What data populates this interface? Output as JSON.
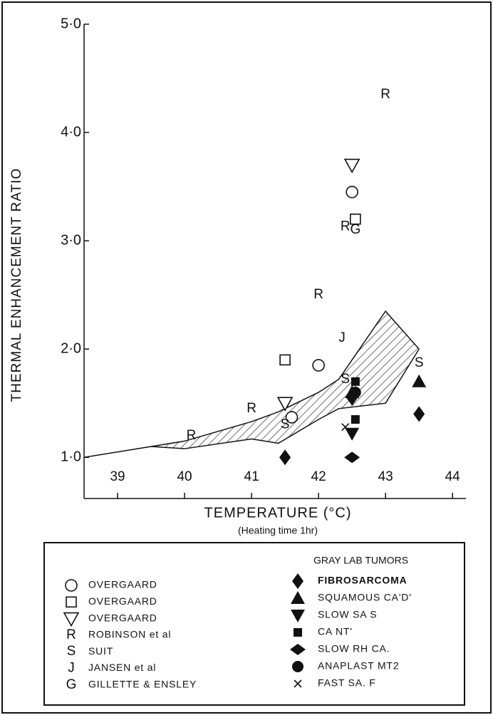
{
  "chart_data": {
    "type": "scatter",
    "y_label": "THERMAL ENHANCEMENT RATIO",
    "x_label": "TEMPERATURE (°C)",
    "x_sublabel": "(Heating time 1hr)",
    "legend_group_title": "GRAY LAB TUMORS",
    "xlim": [
      38.5,
      44.2
    ],
    "ylim": [
      0.62,
      5.0
    ],
    "xticks": [
      39,
      40,
      41,
      42,
      43,
      44
    ],
    "yticks": [
      {
        "value": 1,
        "label": "1·0"
      },
      {
        "value": 2,
        "label": "2·0"
      },
      {
        "value": 3,
        "label": "3·0"
      },
      {
        "value": 4,
        "label": "4·0"
      },
      {
        "value": 5,
        "label": "5·0"
      }
    ],
    "color": "#111111",
    "lead_line": {
      "x": [
        38.5,
        39.5
      ],
      "y": [
        1.0,
        1.1
      ]
    },
    "band": {
      "x": [
        39.5,
        40,
        41,
        41.4,
        42,
        42.3,
        43,
        43.5
      ],
      "upper": [
        1.1,
        1.15,
        1.33,
        1.42,
        1.6,
        1.72,
        2.35,
        2.0
      ],
      "lower": [
        1.1,
        1.08,
        1.17,
        1.13,
        1.35,
        1.45,
        1.5,
        2.0
      ]
    },
    "series": [
      {
        "name": "OVERGAARD",
        "marker": "circle",
        "x": [
          42.5,
          42,
          41.6
        ],
        "y": [
          3.45,
          1.85,
          1.37
        ]
      },
      {
        "name": "OVERGAARD",
        "marker": "square",
        "x": [
          41.5,
          42.55
        ],
        "y": [
          1.9,
          3.2
        ]
      },
      {
        "name": "OVERGAARD",
        "marker": "triangle-down",
        "x": [
          42.5,
          41.5
        ],
        "y": [
          3.7,
          1.5
        ]
      },
      {
        "name": "ROBINSON et al",
        "marker": "R",
        "x": [
          43,
          42,
          42.4,
          41,
          40.1
        ],
        "y": [
          4.35,
          2.5,
          3.13,
          1.45,
          1.2
        ]
      },
      {
        "name": "SUIT",
        "marker": "S",
        "x": [
          43.5,
          41.5,
          42.4
        ],
        "y": [
          1.87,
          1.3,
          1.72
        ]
      },
      {
        "name": "JANSEN et al",
        "marker": "J",
        "x": [
          42.35
        ],
        "y": [
          2.1
        ]
      },
      {
        "name": "GILLETTE & ENSLEY",
        "marker": "G",
        "x": [
          42.55
        ],
        "y": [
          3.1
        ]
      },
      {
        "name": "FIBROSARCOMA",
        "marker": "diamond-tall",
        "group": "gray",
        "x": [
          41.5,
          43.5,
          42.5
        ],
        "y": [
          1.0,
          1.4,
          1.55
        ]
      },
      {
        "name": "SQUAMOUS CA'D'",
        "marker": "triangle-up-filled",
        "group": "gray",
        "x": [
          43.5,
          42.5
        ],
        "y": [
          1.7,
          1.6
        ]
      },
      {
        "name": "SLOW SA S",
        "marker": "triangle-down-filled",
        "group": "gray",
        "x": [
          42.5
        ],
        "y": [
          1.22
        ]
      },
      {
        "name": "CA NT'",
        "marker": "square-filled",
        "group": "gray",
        "x": [
          42.55,
          42.55
        ],
        "y": [
          1.35,
          1.7
        ]
      },
      {
        "name": "SLOW RH CA.",
        "marker": "diamond-wide",
        "group": "gray",
        "x": [
          42.5
        ],
        "y": [
          1.0
        ]
      },
      {
        "name": "ANAPLAST MT2",
        "marker": "circle-filled",
        "group": "gray",
        "x": [
          42.55
        ],
        "y": [
          1.6
        ]
      },
      {
        "name": "FAST SA. F",
        "marker": "x",
        "group": "gray",
        "x": [
          42.4
        ],
        "y": [
          1.28
        ]
      }
    ]
  }
}
